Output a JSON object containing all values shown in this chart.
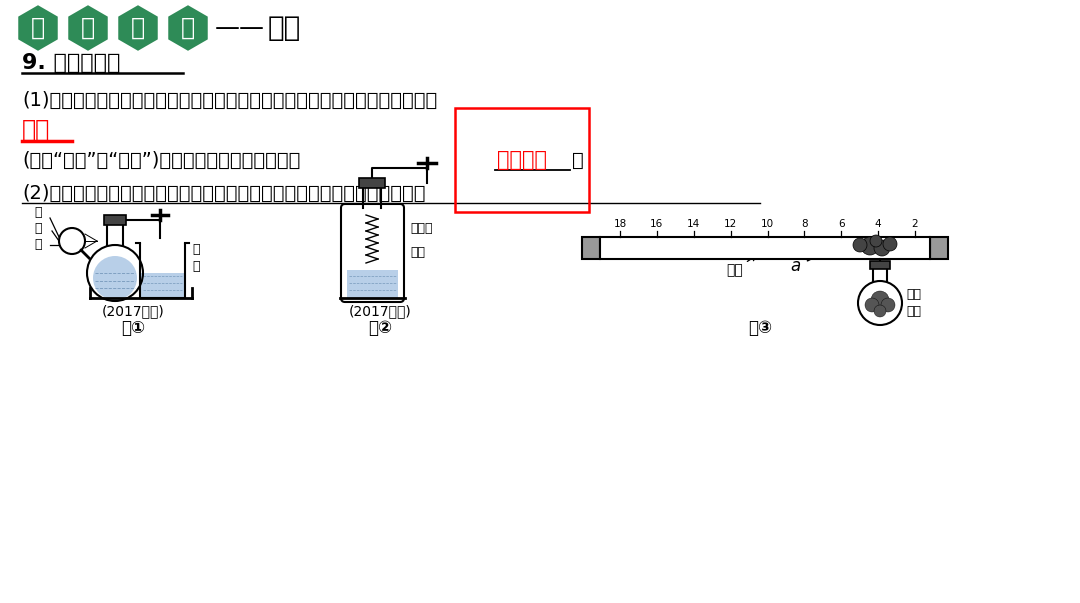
{
  "bg_color": "#ffffff",
  "header_green": "#2e8b57",
  "hexagon_chars": [
    "核",
    "心",
    "素",
    "养"
  ],
  "header_dash": "——",
  "header_title": "创新",
  "section_title": "9. 装置的改进",
  "line1": "(1)改进的原因：燃着的红磷伸入集气瓶时，空气受热膨胀递出，会使测量结果",
  "answer1_red": "偏大",
  "line2": "(选填“偏大”或“偏小”)；红磷在空气中燃烧会造成",
  "answer2_red": "空气污染",
  "line2_end": "。",
  "line3": "(2)改进的思路：在实验过程中不打开装置，使装置始终保持密闭，如下图：",
  "fig1_caption": "(2017日照)",
  "fig2_caption": "(2017鐵岭)",
  "fig1_label": "图①",
  "fig2_label": "图②",
  "fig3_label": "图③",
  "scale_nums": [
    18,
    16,
    14,
    12,
    10,
    8,
    6,
    4,
    2
  ],
  "label_sun": "太\n阳\n光",
  "label_white_phos": "白\n磷",
  "label_wire": "电热丝",
  "label_red_phos": "红磷",
  "label_a": "a",
  "label_air": "空气",
  "label_enough_phos": "足量\n红磷"
}
